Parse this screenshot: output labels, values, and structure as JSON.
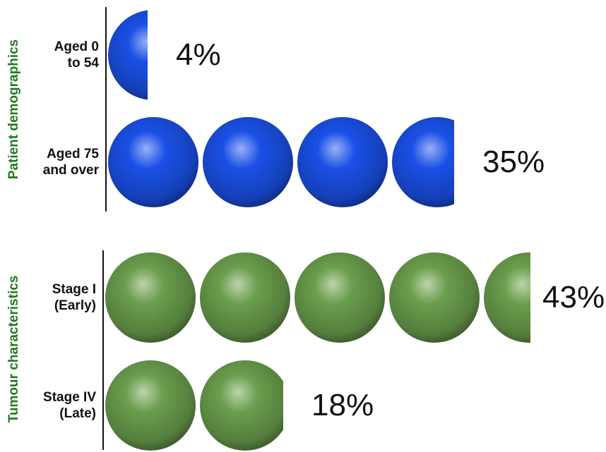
{
  "chart_data": [
    {
      "type": "bar",
      "title": "Patient demographics",
      "categories": [
        "Aged 0\nto 54",
        "Aged 75\nand over"
      ],
      "values": [
        4,
        35
      ],
      "value_labels": [
        "4%",
        "35%"
      ],
      "color": "#1a50e6"
    },
    {
      "type": "bar",
      "title": "Tumour characteristics",
      "categories": [
        "Stage I\n(Early)",
        "Stage IV\n(Late)"
      ],
      "values": [
        43,
        18
      ],
      "value_labels": [
        "43%",
        "18%"
      ],
      "color": "#6a9e4c"
    }
  ]
}
